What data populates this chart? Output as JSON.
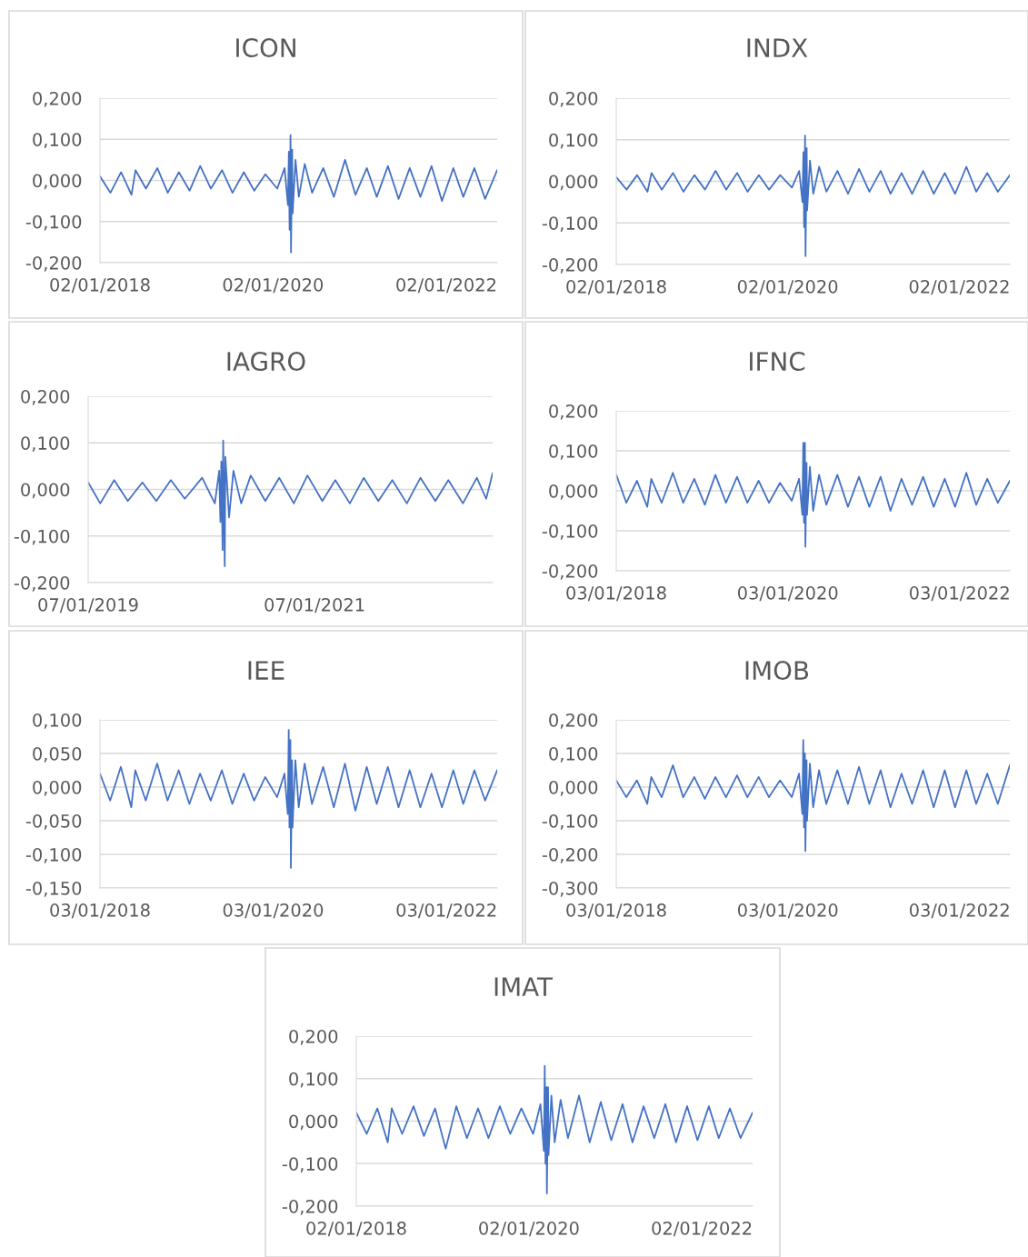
{
  "chart_data": [
    {
      "type": "line",
      "title": "ICON",
      "x": [
        "2018-01-02",
        "2018-02-15",
        "2018-04-01",
        "2018-05-15",
        "2018-06-01",
        "2018-07-15",
        "2018-09-01",
        "2018-10-15",
        "2018-12-01",
        "2019-01-15",
        "2019-03-01",
        "2019-04-15",
        "2019-06-01",
        "2019-07-15",
        "2019-09-01",
        "2019-10-15",
        "2019-12-01",
        "2020-01-20",
        "2020-02-20",
        "2020-03-05",
        "2020-03-09",
        "2020-03-12",
        "2020-03-16",
        "2020-03-18",
        "2020-03-23",
        "2020-03-25",
        "2020-04-06",
        "2020-04-20",
        "2020-05-15",
        "2020-06-15",
        "2020-08-01",
        "2020-09-15",
        "2020-11-01",
        "2020-12-15",
        "2021-02-01",
        "2021-03-15",
        "2021-05-01",
        "2021-06-15",
        "2021-08-01",
        "2021-09-15",
        "2021-11-01",
        "2021-12-15",
        "2022-02-01",
        "2022-03-15",
        "2022-05-01",
        "2022-06-15",
        "2022-08-05"
      ],
      "series": [
        {
          "color": "#4472c4",
          "values": [
            0.01,
            -0.03,
            0.02,
            -0.035,
            0.025,
            -0.02,
            0.03,
            -0.03,
            0.02,
            -0.025,
            0.035,
            -0.02,
            0.025,
            -0.03,
            0.02,
            -0.025,
            0.015,
            -0.02,
            0.03,
            -0.06,
            0.07,
            -0.12,
            0.11,
            -0.175,
            0.075,
            -0.08,
            0.05,
            -0.04,
            0.04,
            -0.03,
            0.03,
            -0.04,
            0.05,
            -0.035,
            0.03,
            -0.04,
            0.035,
            -0.045,
            0.03,
            -0.04,
            0.035,
            -0.05,
            0.03,
            -0.04,
            0.03,
            -0.045,
            0.025
          ]
        }
      ],
      "xlim": [
        "2018-01-02",
        "2022-08-05"
      ],
      "xticks": [
        {
          "value": "2018-01-02",
          "label": "02/01/2018"
        },
        {
          "value": "2020-01-02",
          "label": "02/01/2020"
        },
        {
          "value": "2022-01-02",
          "label": "02/01/2022"
        }
      ],
      "ylim": [
        -0.2,
        0.2
      ],
      "yticks": [
        {
          "value": -0.2,
          "label": "-0,200"
        },
        {
          "value": -0.1,
          "label": "-0,100"
        },
        {
          "value": 0,
          "label": "0,000"
        },
        {
          "value": 0.1,
          "label": "0,100"
        },
        {
          "value": 0.2,
          "label": "0,200"
        }
      ],
      "grid": "y",
      "legend": false
    },
    {
      "type": "line",
      "title": "INDX",
      "x": [
        "2018-01-02",
        "2018-02-15",
        "2018-04-01",
        "2018-05-15",
        "2018-06-01",
        "2018-07-15",
        "2018-09-01",
        "2018-10-15",
        "2018-12-01",
        "2019-01-15",
        "2019-03-01",
        "2019-04-15",
        "2019-06-01",
        "2019-07-15",
        "2019-09-01",
        "2019-10-15",
        "2019-12-01",
        "2020-01-20",
        "2020-02-20",
        "2020-03-05",
        "2020-03-09",
        "2020-03-12",
        "2020-03-16",
        "2020-03-18",
        "2020-03-23",
        "2020-03-25",
        "2020-04-06",
        "2020-04-20",
        "2020-05-15",
        "2020-06-15",
        "2020-08-01",
        "2020-09-15",
        "2020-11-01",
        "2020-12-15",
        "2021-02-01",
        "2021-03-15",
        "2021-05-01",
        "2021-06-15",
        "2021-08-01",
        "2021-09-15",
        "2021-11-01",
        "2021-12-15",
        "2022-02-01",
        "2022-03-15",
        "2022-05-01",
        "2022-06-15",
        "2022-08-05"
      ],
      "series": [
        {
          "color": "#4472c4",
          "values": [
            0.01,
            -0.02,
            0.015,
            -0.025,
            0.02,
            -0.02,
            0.02,
            -0.025,
            0.015,
            -0.02,
            0.025,
            -0.02,
            0.02,
            -0.025,
            0.015,
            -0.02,
            0.015,
            -0.015,
            0.025,
            -0.05,
            0.07,
            -0.11,
            0.11,
            -0.18,
            0.08,
            -0.07,
            0.05,
            -0.03,
            0.035,
            -0.025,
            0.025,
            -0.03,
            0.03,
            -0.025,
            0.025,
            -0.03,
            0.02,
            -0.03,
            0.025,
            -0.03,
            0.02,
            -0.03,
            0.035,
            -0.025,
            0.02,
            -0.025,
            0.015
          ]
        }
      ],
      "xlim": [
        "2018-01-02",
        "2022-08-05"
      ],
      "xticks": [
        {
          "value": "2018-01-02",
          "label": "02/01/2018"
        },
        {
          "value": "2020-01-02",
          "label": "02/01/2020"
        },
        {
          "value": "2022-01-02",
          "label": "02/01/2022"
        }
      ],
      "ylim": [
        -0.2,
        0.2
      ],
      "yticks": [
        {
          "value": -0.2,
          "label": "-0,200"
        },
        {
          "value": -0.1,
          "label": "-0,100"
        },
        {
          "value": 0,
          "label": "0,000"
        },
        {
          "value": 0.1,
          "label": "0,100"
        },
        {
          "value": 0.2,
          "label": "0,200"
        }
      ],
      "grid": "y",
      "legend": false
    },
    {
      "type": "line",
      "title": "IAGRO",
      "x": [
        "2019-01-07",
        "2019-02-15",
        "2019-04-01",
        "2019-05-15",
        "2019-07-01",
        "2019-08-15",
        "2019-10-01",
        "2019-11-15",
        "2020-01-10",
        "2020-02-20",
        "2020-03-05",
        "2020-03-09",
        "2020-03-12",
        "2020-03-16",
        "2020-03-18",
        "2020-03-23",
        "2020-03-25",
        "2020-04-06",
        "2020-04-20",
        "2020-05-15",
        "2020-06-15",
        "2020-08-01",
        "2020-09-15",
        "2020-11-01",
        "2020-12-15",
        "2021-02-01",
        "2021-03-15",
        "2021-05-01",
        "2021-06-15",
        "2021-08-01",
        "2021-09-15",
        "2021-11-01",
        "2021-12-15",
        "2022-02-01",
        "2022-03-15",
        "2022-05-01",
        "2022-06-15",
        "2022-07-15",
        "2022-08-05"
      ],
      "series": [
        {
          "color": "#4472c4",
          "values": [
            0.015,
            -0.03,
            0.02,
            -0.025,
            0.015,
            -0.025,
            0.02,
            -0.02,
            0.025,
            -0.03,
            0.04,
            -0.07,
            0.06,
            -0.13,
            0.105,
            -0.165,
            0.07,
            -0.06,
            0.04,
            -0.03,
            0.03,
            -0.025,
            0.025,
            -0.03,
            0.03,
            -0.025,
            0.02,
            -0.03,
            0.025,
            -0.025,
            0.02,
            -0.03,
            0.025,
            -0.025,
            0.02,
            -0.03,
            0.025,
            -0.02,
            0.035
          ]
        }
      ],
      "xlim": [
        "2019-01-07",
        "2022-08-05"
      ],
      "xticks": [
        {
          "value": "2019-01-07",
          "label": "07/01/2019"
        },
        {
          "value": "2021-01-07",
          "label": "07/01/2021"
        }
      ],
      "ylim": [
        -0.2,
        0.2
      ],
      "yticks": [
        {
          "value": -0.2,
          "label": "-0,200"
        },
        {
          "value": -0.1,
          "label": "-0,100"
        },
        {
          "value": 0,
          "label": "0,000"
        },
        {
          "value": 0.1,
          "label": "0,100"
        },
        {
          "value": 0.2,
          "label": "0,200"
        }
      ],
      "grid": "y",
      "legend": false
    },
    {
      "type": "line",
      "title": "IFNC",
      "x": [
        "2018-01-03",
        "2018-02-15",
        "2018-04-01",
        "2018-05-15",
        "2018-06-01",
        "2018-07-15",
        "2018-09-01",
        "2018-10-15",
        "2018-12-01",
        "2019-01-15",
        "2019-03-01",
        "2019-04-15",
        "2019-06-01",
        "2019-07-15",
        "2019-09-01",
        "2019-10-15",
        "2019-12-01",
        "2020-01-20",
        "2020-02-20",
        "2020-03-05",
        "2020-03-09",
        "2020-03-12",
        "2020-03-16",
        "2020-03-18",
        "2020-03-23",
        "2020-03-25",
        "2020-04-06",
        "2020-04-20",
        "2020-05-15",
        "2020-06-15",
        "2020-08-01",
        "2020-09-15",
        "2020-11-01",
        "2020-12-15",
        "2021-02-01",
        "2021-03-15",
        "2021-05-01",
        "2021-06-15",
        "2021-08-01",
        "2021-09-15",
        "2021-11-01",
        "2021-12-15",
        "2022-02-01",
        "2022-03-15",
        "2022-05-01",
        "2022-06-15",
        "2022-08-05"
      ],
      "series": [
        {
          "color": "#4472c4",
          "values": [
            0.04,
            -0.03,
            0.025,
            -0.04,
            0.03,
            -0.03,
            0.045,
            -0.03,
            0.03,
            -0.035,
            0.04,
            -0.03,
            0.035,
            -0.03,
            0.025,
            -0.03,
            0.02,
            -0.025,
            0.03,
            -0.06,
            0.12,
            -0.08,
            0.12,
            -0.14,
            0.07,
            -0.06,
            0.06,
            -0.05,
            0.04,
            -0.035,
            0.04,
            -0.04,
            0.035,
            -0.04,
            0.035,
            -0.05,
            0.03,
            -0.035,
            0.035,
            -0.04,
            0.03,
            -0.04,
            0.045,
            -0.035,
            0.03,
            -0.03,
            0.025
          ]
        }
      ],
      "xlim": [
        "2018-01-03",
        "2022-08-05"
      ],
      "xticks": [
        {
          "value": "2018-01-03",
          "label": "03/01/2018"
        },
        {
          "value": "2020-01-03",
          "label": "03/01/2020"
        },
        {
          "value": "2022-01-03",
          "label": "03/01/2022"
        }
      ],
      "ylim": [
        -0.2,
        0.2
      ],
      "yticks": [
        {
          "value": -0.2,
          "label": "-0,200"
        },
        {
          "value": -0.1,
          "label": "-0,100"
        },
        {
          "value": 0,
          "label": "0,000"
        },
        {
          "value": 0.1,
          "label": "0,100"
        },
        {
          "value": 0.2,
          "label": "0,200"
        }
      ],
      "grid": "y",
      "legend": false
    },
    {
      "type": "line",
      "title": "IEE",
      "x": [
        "2018-01-03",
        "2018-02-15",
        "2018-04-01",
        "2018-05-15",
        "2018-06-01",
        "2018-07-15",
        "2018-09-01",
        "2018-10-15",
        "2018-12-01",
        "2019-01-15",
        "2019-03-01",
        "2019-04-15",
        "2019-06-01",
        "2019-07-15",
        "2019-09-01",
        "2019-10-15",
        "2019-12-01",
        "2020-01-20",
        "2020-02-20",
        "2020-03-05",
        "2020-03-09",
        "2020-03-12",
        "2020-03-16",
        "2020-03-18",
        "2020-03-23",
        "2020-03-25",
        "2020-04-06",
        "2020-04-20",
        "2020-05-15",
        "2020-06-15",
        "2020-08-01",
        "2020-09-15",
        "2020-11-01",
        "2020-12-15",
        "2021-02-01",
        "2021-03-15",
        "2021-05-01",
        "2021-06-15",
        "2021-08-01",
        "2021-09-15",
        "2021-11-01",
        "2021-12-15",
        "2022-02-01",
        "2022-03-15",
        "2022-05-01",
        "2022-06-15",
        "2022-08-05"
      ],
      "series": [
        {
          "color": "#4472c4",
          "values": [
            0.02,
            -0.02,
            0.03,
            -0.03,
            0.025,
            -0.02,
            0.035,
            -0.02,
            0.025,
            -0.025,
            0.02,
            -0.02,
            0.025,
            -0.025,
            0.02,
            -0.02,
            0.015,
            -0.015,
            0.02,
            -0.04,
            0.085,
            -0.06,
            0.07,
            -0.12,
            0.04,
            -0.06,
            0.04,
            -0.03,
            0.035,
            -0.025,
            0.03,
            -0.03,
            0.035,
            -0.035,
            0.03,
            -0.025,
            0.03,
            -0.03,
            0.025,
            -0.03,
            0.02,
            -0.03,
            0.025,
            -0.025,
            0.025,
            -0.02,
            0.025
          ]
        }
      ],
      "xlim": [
        "2018-01-03",
        "2022-08-05"
      ],
      "xticks": [
        {
          "value": "2018-01-03",
          "label": "03/01/2018"
        },
        {
          "value": "2020-01-03",
          "label": "03/01/2020"
        },
        {
          "value": "2022-01-03",
          "label": "03/01/2022"
        }
      ],
      "ylim": [
        -0.15,
        0.1
      ],
      "yticks": [
        {
          "value": -0.15,
          "label": "-0,150"
        },
        {
          "value": -0.1,
          "label": "-0,100"
        },
        {
          "value": -0.05,
          "label": "-0,050"
        },
        {
          "value": 0,
          "label": "0,000"
        },
        {
          "value": 0.05,
          "label": "0,050"
        },
        {
          "value": 0.1,
          "label": "0,100"
        }
      ],
      "grid": "y",
      "legend": false
    },
    {
      "type": "line",
      "title": "IMOB",
      "x": [
        "2018-01-03",
        "2018-02-15",
        "2018-04-01",
        "2018-05-15",
        "2018-06-01",
        "2018-07-15",
        "2018-09-01",
        "2018-10-15",
        "2018-12-01",
        "2019-01-15",
        "2019-03-01",
        "2019-04-15",
        "2019-06-01",
        "2019-07-15",
        "2019-09-01",
        "2019-10-15",
        "2019-12-01",
        "2020-01-20",
        "2020-02-20",
        "2020-03-05",
        "2020-03-09",
        "2020-03-12",
        "2020-03-16",
        "2020-03-18",
        "2020-03-23",
        "2020-03-25",
        "2020-04-06",
        "2020-04-20",
        "2020-05-15",
        "2020-06-15",
        "2020-08-01",
        "2020-09-15",
        "2020-11-01",
        "2020-12-15",
        "2021-02-01",
        "2021-03-15",
        "2021-05-01",
        "2021-06-15",
        "2021-08-01",
        "2021-09-15",
        "2021-11-01",
        "2021-12-15",
        "2022-02-01",
        "2022-03-15",
        "2022-05-01",
        "2022-06-15",
        "2022-08-05"
      ],
      "series": [
        {
          "color": "#4472c4",
          "values": [
            0.02,
            -0.03,
            0.02,
            -0.05,
            0.03,
            -0.03,
            0.065,
            -0.03,
            0.03,
            -0.035,
            0.03,
            -0.03,
            0.035,
            -0.03,
            0.03,
            -0.03,
            0.02,
            -0.03,
            0.04,
            -0.08,
            0.14,
            -0.12,
            0.1,
            -0.19,
            0.08,
            -0.1,
            0.07,
            -0.06,
            0.05,
            -0.05,
            0.05,
            -0.05,
            0.06,
            -0.05,
            0.05,
            -0.06,
            0.04,
            -0.05,
            0.05,
            -0.06,
            0.05,
            -0.06,
            0.05,
            -0.05,
            0.04,
            -0.05,
            0.065
          ]
        }
      ],
      "xlim": [
        "2018-01-03",
        "2022-08-05"
      ],
      "xticks": [
        {
          "value": "2018-01-03",
          "label": "03/01/2018"
        },
        {
          "value": "2020-01-03",
          "label": "03/01/2020"
        },
        {
          "value": "2022-01-03",
          "label": "03/01/2022"
        }
      ],
      "ylim": [
        -0.3,
        0.2
      ],
      "yticks": [
        {
          "value": -0.3,
          "label": "-0,300"
        },
        {
          "value": -0.2,
          "label": "-0,200"
        },
        {
          "value": -0.1,
          "label": "-0,100"
        },
        {
          "value": 0,
          "label": "0,000"
        },
        {
          "value": 0.1,
          "label": "0,100"
        },
        {
          "value": 0.2,
          "label": "0,200"
        }
      ],
      "grid": "y",
      "legend": false
    },
    {
      "type": "line",
      "title": "IMAT",
      "x": [
        "2018-01-02",
        "2018-02-15",
        "2018-04-01",
        "2018-05-15",
        "2018-06-01",
        "2018-07-15",
        "2018-09-01",
        "2018-10-15",
        "2018-12-01",
        "2019-01-15",
        "2019-03-01",
        "2019-04-15",
        "2019-06-01",
        "2019-07-15",
        "2019-09-01",
        "2019-10-15",
        "2019-12-01",
        "2020-01-20",
        "2020-02-20",
        "2020-03-05",
        "2020-03-09",
        "2020-03-12",
        "2020-03-16",
        "2020-03-18",
        "2020-03-23",
        "2020-03-25",
        "2020-04-06",
        "2020-04-20",
        "2020-05-15",
        "2020-06-15",
        "2020-08-01",
        "2020-09-15",
        "2020-11-01",
        "2020-12-15",
        "2021-02-01",
        "2021-03-15",
        "2021-05-01",
        "2021-06-15",
        "2021-08-01",
        "2021-09-15",
        "2021-11-01",
        "2021-12-15",
        "2022-02-01",
        "2022-03-15",
        "2022-05-01",
        "2022-06-15",
        "2022-08-05"
      ],
      "series": [
        {
          "color": "#4472c4",
          "values": [
            0.02,
            -0.03,
            0.03,
            -0.05,
            0.03,
            -0.03,
            0.035,
            -0.035,
            0.03,
            -0.065,
            0.035,
            -0.04,
            0.03,
            -0.04,
            0.035,
            -0.03,
            0.03,
            -0.03,
            0.04,
            -0.07,
            0.13,
            -0.1,
            0.08,
            -0.17,
            0.08,
            -0.08,
            0.06,
            -0.05,
            0.05,
            -0.04,
            0.06,
            -0.05,
            0.045,
            -0.045,
            0.04,
            -0.05,
            0.035,
            -0.04,
            0.04,
            -0.05,
            0.035,
            -0.045,
            0.035,
            -0.04,
            0.03,
            -0.04,
            0.02
          ]
        }
      ],
      "xlim": [
        "2018-01-02",
        "2022-08-05"
      ],
      "xticks": [
        {
          "value": "2018-01-02",
          "label": "02/01/2018"
        },
        {
          "value": "2020-01-02",
          "label": "02/01/2020"
        },
        {
          "value": "2022-01-02",
          "label": "02/01/2022"
        }
      ],
      "ylim": [
        -0.2,
        0.2
      ],
      "yticks": [
        {
          "value": -0.2,
          "label": "-0,200"
        },
        {
          "value": -0.1,
          "label": "-0,100"
        },
        {
          "value": 0,
          "label": "0,000"
        },
        {
          "value": 0.1,
          "label": "0,100"
        },
        {
          "value": 0.2,
          "label": "0,200"
        }
      ],
      "grid": "y",
      "legend": false
    }
  ]
}
